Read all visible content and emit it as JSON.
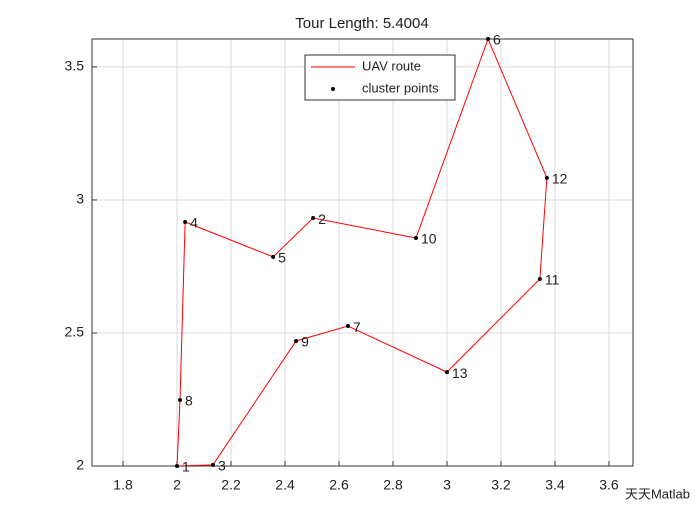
{
  "chart_data": {
    "type": "route",
    "title": "Tour Length: 5.4004",
    "xlim": [
      1.685,
      3.689
    ],
    "ylim": [
      2,
      3.605
    ],
    "xticks": [
      1.8,
      2,
      2.2,
      2.4,
      2.6,
      2.8,
      3,
      3.2,
      3.4,
      3.6
    ],
    "yticks": [
      2,
      2.5,
      3,
      3.5
    ],
    "grid": true,
    "legend": "top",
    "series": [
      {
        "name": "UAV route",
        "color": "#ff0000",
        "x": [
          2.0,
          2.011,
          2.03,
          2.356,
          2.504,
          2.885,
          3.152,
          3.37,
          3.344,
          3.0,
          2.633,
          2.441,
          2.133,
          2.0
        ],
        "y": [
          2.0,
          2.248,
          2.917,
          2.786,
          2.932,
          2.857,
          3.605,
          3.083,
          2.703,
          2.353,
          2.526,
          2.47,
          2.004,
          2.0
        ]
      },
      {
        "name": "cluster points",
        "color": "#000000",
        "x": [
          2.0,
          2.504,
          2.133,
          2.03,
          2.356,
          3.152,
          2.633,
          2.011,
          2.441,
          2.885,
          3.344,
          3.37,
          3.0
        ],
        "y": [
          2.0,
          2.932,
          2.004,
          2.917,
          2.786,
          3.605,
          2.526,
          2.248,
          2.47,
          2.857,
          2.703,
          3.083,
          2.353
        ],
        "labels": [
          "1",
          "2",
          "3",
          "4",
          "5",
          "6",
          "7",
          "8",
          "9",
          "10",
          "11",
          "12",
          "13"
        ]
      }
    ],
    "watermark": "天天Matlab"
  }
}
